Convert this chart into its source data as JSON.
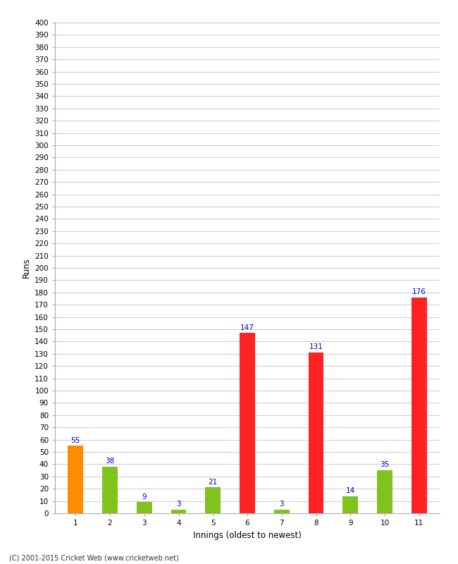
{
  "xlabel": "Innings (oldest to newest)",
  "ylabel": "Runs",
  "categories": [
    "1",
    "2",
    "3",
    "4",
    "5",
    "6",
    "7",
    "8",
    "9",
    "10",
    "11"
  ],
  "values": [
    55,
    38,
    9,
    3,
    21,
    147,
    3,
    131,
    14,
    35,
    176
  ],
  "colors": [
    "#ff8c00",
    "#7fc31c",
    "#7fc31c",
    "#7fc31c",
    "#7fc31c",
    "#ff2222",
    "#7fc31c",
    "#ff2222",
    "#7fc31c",
    "#7fc31c",
    "#ff2222"
  ],
  "ylim": [
    0,
    400
  ],
  "ytick_step": 10,
  "label_color": "#0000cc",
  "label_fontsize": 7.5,
  "axis_label_fontsize": 8.5,
  "tick_fontsize": 7.5,
  "footer": "(C) 2001-2015 Cricket Web (www.cricketweb.net)",
  "bg_color": "#ffffff",
  "grid_color": "#cccccc",
  "bar_width": 0.45,
  "spine_color": "#aaaaaa"
}
